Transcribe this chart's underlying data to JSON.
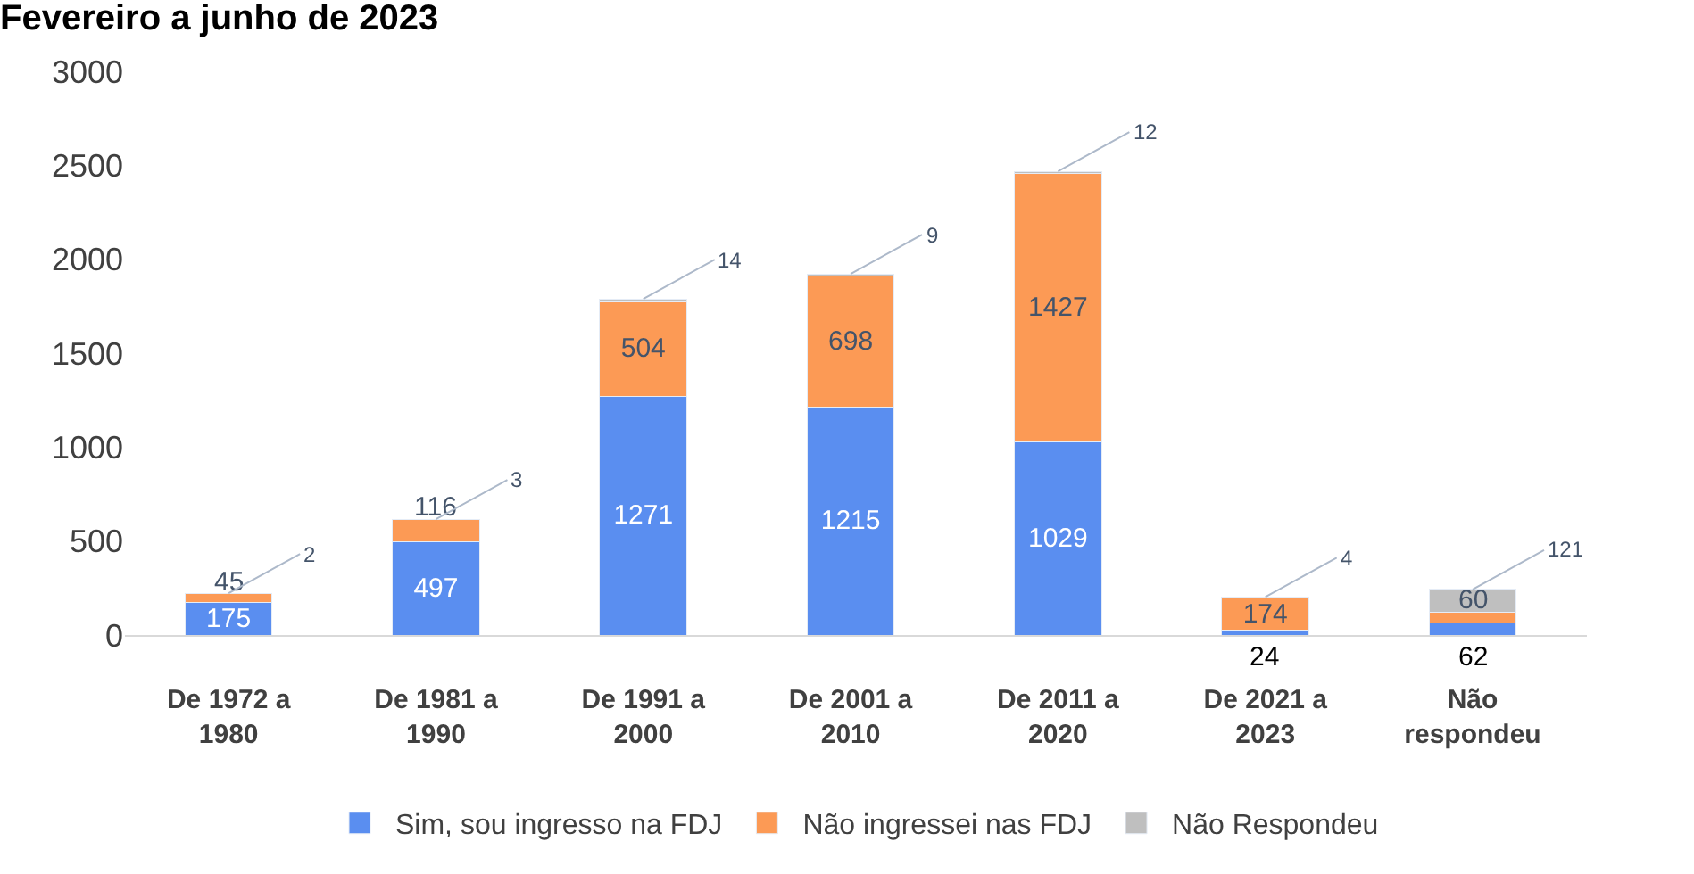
{
  "chart_data": {
    "type": "bar",
    "title": "Fevereiro a junho de 2023",
    "stacked": true,
    "data_labels": true,
    "legend": "bottom",
    "categories": [
      "De 1972 a 1980",
      "De 1981 a 1990",
      "De 1991 a 2000",
      "De 2001 a 2010",
      "De 2011 a 2020",
      "De 2021 a 2023",
      "Não respondeu"
    ],
    "series": [
      {
        "name": "Sim, sou ingresso na FDJ",
        "color": "#5a8ef0",
        "values": [
          175,
          497,
          1271,
          1215,
          1029,
          24,
          62
        ]
      },
      {
        "name": "Não ingressei nas FDJ",
        "color": "#fc9a55",
        "values": [
          45,
          116,
          504,
          698,
          1427,
          174,
          60
        ]
      },
      {
        "name": "Não Respondeu",
        "color": "#bfbfbf",
        "values": [
          2,
          3,
          14,
          9,
          12,
          4,
          121
        ]
      }
    ],
    "ylim": [
      0,
      3000
    ],
    "yticks": [
      0,
      500,
      1000,
      1500,
      2000,
      2500,
      3000
    ]
  }
}
